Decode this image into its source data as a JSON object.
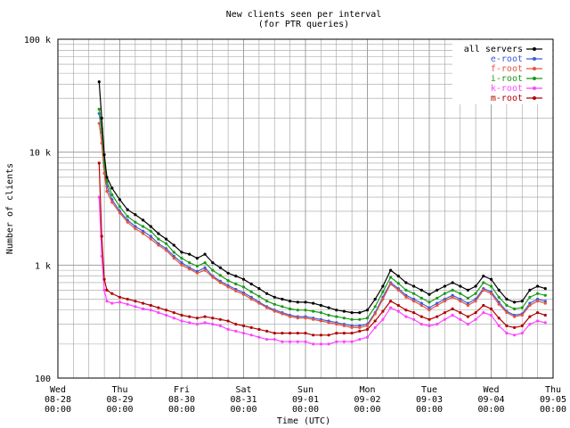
{
  "chart_data": {
    "type": "line",
    "title": "New clients seen per interval",
    "subtitle": "(for PTR queries)",
    "xlabel": "Time (UTC)",
    "ylabel": "Number of clients",
    "y_scale": "log",
    "ylim": [
      100,
      100000
    ],
    "xlim": [
      "2013-08-28 00:00",
      "2013-09-05 00:00"
    ],
    "grid": true,
    "legend_position": "top-right",
    "x_ticks": [
      {
        "day": "Wed",
        "date": "08-28",
        "time": "00:00"
      },
      {
        "day": "Thu",
        "date": "08-29",
        "time": "00:00"
      },
      {
        "day": "Fri",
        "date": "08-30",
        "time": "00:00"
      },
      {
        "day": "Sat",
        "date": "08-31",
        "time": "00:00"
      },
      {
        "day": "Sun",
        "date": "09-01",
        "time": "00:00"
      },
      {
        "day": "Mon",
        "date": "09-02",
        "time": "00:00"
      },
      {
        "day": "Tue",
        "date": "09-03",
        "time": "00:00"
      },
      {
        "day": "Wed",
        "date": "09-04",
        "time": "00:00"
      },
      {
        "day": "Thu",
        "date": "09-05",
        "time": "00:00"
      }
    ],
    "y_ticks": [
      {
        "value": 100,
        "label": "100"
      },
      {
        "value": 1000,
        "label": "1 k"
      },
      {
        "value": 10000,
        "label": "10 k"
      },
      {
        "value": 100000,
        "label": "100 k"
      }
    ],
    "x": [
      "08-28 16:00",
      "08-28 17:00",
      "08-28 18:00",
      "08-28 19:00",
      "08-28 21:00",
      "08-29 00:00",
      "08-29 03:00",
      "08-29 06:00",
      "08-29 09:00",
      "08-29 12:00",
      "08-29 15:00",
      "08-29 18:00",
      "08-29 21:00",
      "08-30 00:00",
      "08-30 03:00",
      "08-30 06:00",
      "08-30 09:00",
      "08-30 12:00",
      "08-30 15:00",
      "08-30 18:00",
      "08-30 21:00",
      "08-31 00:00",
      "08-31 03:00",
      "08-31 06:00",
      "08-31 09:00",
      "08-31 12:00",
      "08-31 15:00",
      "08-31 18:00",
      "08-31 21:00",
      "09-01 00:00",
      "09-01 03:00",
      "09-01 06:00",
      "09-01 09:00",
      "09-01 12:00",
      "09-01 15:00",
      "09-01 18:00",
      "09-01 21:00",
      "09-02 00:00",
      "09-02 03:00",
      "09-02 06:00",
      "09-02 09:00",
      "09-02 12:00",
      "09-02 15:00",
      "09-02 18:00",
      "09-02 21:00",
      "09-03 00:00",
      "09-03 03:00",
      "09-03 06:00",
      "09-03 09:00",
      "09-03 12:00",
      "09-03 15:00",
      "09-03 18:00",
      "09-03 21:00",
      "09-04 00:00",
      "09-04 03:00",
      "09-04 06:00",
      "09-04 09:00",
      "09-04 12:00",
      "09-04 15:00",
      "09-04 18:00",
      "09-04 21:00"
    ],
    "series": [
      {
        "name": "all servers",
        "color": "#000000",
        "values": [
          42000,
          20000,
          9500,
          6000,
          4800,
          3800,
          3100,
          2800,
          2500,
          2200,
          1900,
          1700,
          1500,
          1300,
          1250,
          1150,
          1250,
          1050,
          950,
          850,
          800,
          750,
          680,
          620,
          560,
          520,
          500,
          480,
          470,
          470,
          460,
          440,
          420,
          400,
          390,
          380,
          380,
          400,
          500,
          650,
          900,
          800,
          700,
          650,
          600,
          550,
          600,
          650,
          700,
          650,
          600,
          650,
          800,
          750,
          600,
          500,
          470,
          480,
          600,
          650,
          620
        ]
      },
      {
        "name": "e-root",
        "color": "#3b5bdb",
        "values": [
          22000,
          15000,
          7500,
          5000,
          3800,
          3000,
          2500,
          2200,
          2000,
          1800,
          1550,
          1400,
          1200,
          1050,
          950,
          880,
          950,
          800,
          720,
          660,
          610,
          570,
          520,
          470,
          430,
          400,
          380,
          360,
          350,
          350,
          340,
          330,
          320,
          310,
          300,
          290,
          290,
          300,
          380,
          520,
          700,
          620,
          540,
          500,
          460,
          420,
          460,
          500,
          540,
          500,
          460,
          500,
          620,
          580,
          470,
          390,
          360,
          370,
          460,
          500,
          480
        ]
      },
      {
        "name": "f-root",
        "color": "#e8543c",
        "values": [
          18000,
          12000,
          6500,
          4500,
          3600,
          2900,
          2400,
          2100,
          1900,
          1700,
          1500,
          1350,
          1150,
          1000,
          920,
          850,
          900,
          780,
          700,
          640,
          590,
          550,
          500,
          460,
          420,
          390,
          370,
          350,
          340,
          340,
          330,
          320,
          310,
          300,
          290,
          280,
          280,
          290,
          370,
          500,
          680,
          600,
          520,
          480,
          440,
          400,
          440,
          480,
          520,
          480,
          440,
          480,
          600,
          560,
          450,
          380,
          350,
          360,
          440,
          480,
          460
        ]
      },
      {
        "name": "i-root",
        "color": "#1a9a1a",
        "values": [
          24000,
          16000,
          8000,
          5500,
          4200,
          3300,
          2700,
          2400,
          2200,
          2000,
          1700,
          1550,
          1300,
          1150,
          1050,
          980,
          1050,
          900,
          810,
          730,
          680,
          640,
          580,
          530,
          480,
          450,
          430,
          410,
          400,
          400,
          390,
          380,
          360,
          350,
          340,
          330,
          330,
          340,
          430,
          580,
          780,
          690,
          600,
          560,
          510,
          470,
          510,
          560,
          600,
          560,
          510,
          560,
          700,
          650,
          520,
          440,
          410,
          420,
          520,
          560,
          540
        ]
      },
      {
        "name": "k-root",
        "color": "#ff44ff",
        "values": [
          4000,
          1200,
          600,
          480,
          460,
          470,
          450,
          430,
          410,
          400,
          380,
          360,
          340,
          320,
          310,
          300,
          310,
          300,
          290,
          270,
          260,
          250,
          240,
          230,
          220,
          220,
          210,
          210,
          210,
          210,
          200,
          200,
          200,
          210,
          210,
          210,
          220,
          230,
          280,
          330,
          420,
          390,
          350,
          330,
          300,
          290,
          300,
          330,
          360,
          330,
          300,
          330,
          380,
          360,
          290,
          250,
          240,
          250,
          300,
          320,
          310
        ]
      },
      {
        "name": "m-root",
        "color": "#b30000",
        "values": [
          8000,
          1800,
          750,
          600,
          560,
          520,
          500,
          480,
          460,
          440,
          420,
          400,
          380,
          360,
          350,
          340,
          350,
          340,
          330,
          320,
          300,
          290,
          280,
          270,
          260,
          250,
          250,
          250,
          250,
          250,
          240,
          240,
          240,
          250,
          250,
          250,
          260,
          270,
          320,
          390,
          480,
          440,
          400,
          380,
          350,
          330,
          350,
          380,
          410,
          380,
          350,
          380,
          440,
          410,
          340,
          290,
          280,
          290,
          350,
          380,
          360
        ]
      }
    ]
  }
}
